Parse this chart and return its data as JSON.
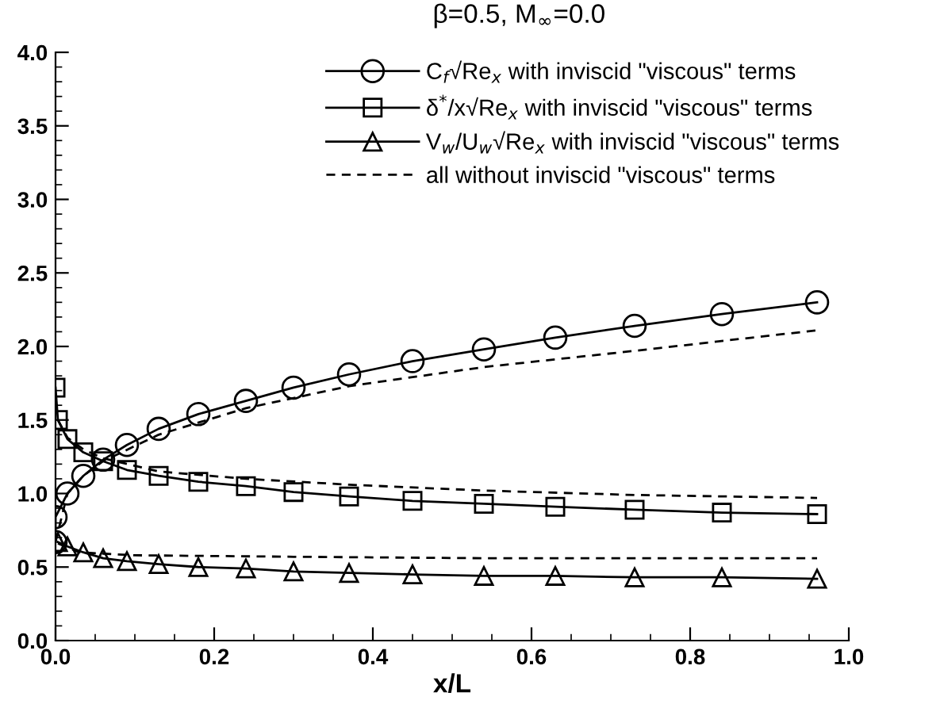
{
  "chart_data": {
    "type": "line",
    "title": "β=0.5, M$_{∞}$=0.0",
    "xlabel": "x/L",
    "xlim": [
      0.0,
      1.0
    ],
    "xticks": [
      "0.0",
      0.2,
      0.4,
      0.6,
      0.8,
      "1.0"
    ],
    "ylim": [
      0.0,
      4.0
    ],
    "yticks": [
      "0.0",
      0.5,
      "1.0",
      1.5,
      "2.0",
      2.5,
      "3.0",
      3.5,
      "4.0"
    ],
    "grid": false,
    "legend": "top right",
    "series": [
      {
        "name": "C$_{f}$√Re$_{x}$ with inviscid \"viscous\" terms",
        "color": "#000000",
        "marker": "circle",
        "line_style": "solid",
        "x": [
          0.0,
          0.0,
          0.015,
          0.035,
          0.06,
          0.09,
          0.13,
          0.18,
          0.24,
          0.3,
          0.37,
          0.45,
          0.54,
          0.63,
          0.73,
          0.84,
          0.96
        ],
        "values": [
          0.67,
          0.84,
          1.0,
          1.12,
          1.23,
          1.33,
          1.44,
          1.54,
          1.63,
          1.72,
          1.81,
          1.9,
          1.98,
          2.06,
          2.14,
          2.22,
          2.3
        ]
      },
      {
        "name": "δ$^{*}$/x√Re$_{x}$ with inviscid \"viscous\" terms",
        "color": "#000000",
        "marker": "square",
        "line_style": "solid",
        "x": [
          0.0,
          0.003,
          0.015,
          0.035,
          0.06,
          0.09,
          0.13,
          0.18,
          0.24,
          0.3,
          0.37,
          0.45,
          0.54,
          0.63,
          0.73,
          0.84,
          0.96
        ],
        "values": [
          1.72,
          1.5,
          1.37,
          1.28,
          1.22,
          1.16,
          1.12,
          1.08,
          1.05,
          1.01,
          0.98,
          0.95,
          0.93,
          0.91,
          0.89,
          0.87,
          0.86
        ]
      },
      {
        "name": "V$_{w}$/U$_{w}$√Re$_{x}$ with inviscid \"viscous\" terms",
        "color": "#000000",
        "marker": "triangle",
        "line_style": "solid",
        "x": [
          0.003,
          0.015,
          0.035,
          0.06,
          0.09,
          0.13,
          0.18,
          0.24,
          0.3,
          0.37,
          0.45,
          0.54,
          0.63,
          0.73,
          0.84,
          0.96
        ],
        "values": [
          0.67,
          0.64,
          0.6,
          0.56,
          0.54,
          0.52,
          0.5,
          0.49,
          0.47,
          0.46,
          0.45,
          0.44,
          0.44,
          0.43,
          0.43,
          0.42
        ]
      },
      {
        "name": "all without inviscid \"viscous\" terms",
        "color": "#000000",
        "marker": "none",
        "line_style": "dashed",
        "x": [
          0.0,
          0.015,
          0.035,
          0.06,
          0.13,
          0.24,
          0.37,
          0.54,
          0.73,
          0.96
        ],
        "values": [
          0.67,
          1.0,
          1.12,
          1.22,
          1.4,
          1.58,
          1.73,
          1.86,
          1.97,
          2.11
        ]
      },
      {
        "color": "#000000",
        "marker": "none",
        "line_style": "dashed",
        "x": [
          0.003,
          0.015,
          0.035,
          0.06,
          0.13,
          0.24,
          0.37,
          0.54,
          0.73,
          0.96
        ],
        "values": [
          1.5,
          1.38,
          1.3,
          1.24,
          1.15,
          1.1,
          1.06,
          1.02,
          0.99,
          0.97
        ]
      },
      {
        "color": "#000000",
        "marker": "none",
        "line_style": "dashed",
        "x": [
          0.003,
          0.03,
          0.1,
          0.3,
          0.54,
          0.96
        ],
        "values": [
          0.66,
          0.6,
          0.58,
          0.57,
          0.56,
          0.56
        ]
      }
    ]
  }
}
